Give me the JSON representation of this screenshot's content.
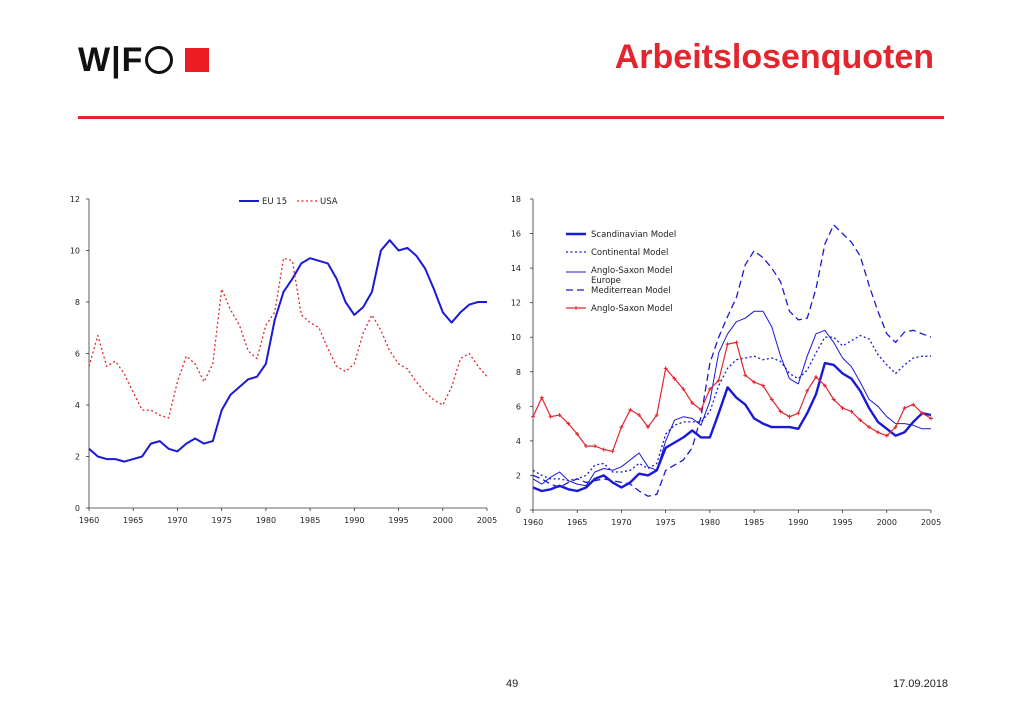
{
  "header": {
    "logo_text": "W|F",
    "title": "Arbeitslosenquoten"
  },
  "footer": {
    "page": "49",
    "date": "17.09.2018"
  },
  "colors": {
    "accent": "#e3262d",
    "blue": "#1a1ad6",
    "red": "#e3262d"
  },
  "chart_data": [
    {
      "type": "line",
      "title": "",
      "xlabel": "",
      "ylabel": "",
      "xlim": [
        1960,
        2005
      ],
      "ylim": [
        0,
        12
      ],
      "y_ticks": [
        "0",
        "2",
        "4",
        "6",
        "8",
        "10",
        "12"
      ],
      "x_ticks": [
        "1960",
        "1965",
        "1970",
        "1975",
        "1980",
        "1985",
        "1990",
        "1995",
        "2000",
        "2005"
      ],
      "legend_position": "top-center",
      "x": [
        1960,
        1961,
        1962,
        1963,
        1964,
        1965,
        1966,
        1967,
        1968,
        1969,
        1970,
        1971,
        1972,
        1973,
        1974,
        1975,
        1976,
        1977,
        1978,
        1979,
        1980,
        1981,
        1982,
        1983,
        1984,
        1985,
        1986,
        1987,
        1988,
        1989,
        1990,
        1991,
        1992,
        1993,
        1994,
        1995,
        1996,
        1997,
        1998,
        1999,
        2000,
        2001,
        2002,
        2003,
        2004,
        2005
      ],
      "series": [
        {
          "name": "EU 15",
          "color": "#1a1ad6",
          "dash": "solid",
          "values": [
            2.3,
            2.0,
            1.9,
            1.9,
            1.8,
            1.9,
            2.0,
            2.5,
            2.6,
            2.3,
            2.2,
            2.5,
            2.7,
            2.5,
            2.6,
            3.8,
            4.4,
            4.7,
            5.0,
            5.1,
            5.6,
            7.3,
            8.4,
            8.9,
            9.5,
            9.7,
            9.6,
            9.5,
            8.9,
            8.0,
            7.5,
            7.8,
            8.4,
            10.0,
            10.4,
            10.0,
            10.1,
            9.8,
            9.3,
            8.5,
            7.6,
            7.2,
            7.6,
            7.9,
            8.0,
            8.0
          ]
        },
        {
          "name": "USA",
          "color": "#e3262d",
          "dash": "dotted",
          "values": [
            5.5,
            6.7,
            5.5,
            5.7,
            5.2,
            4.5,
            3.8,
            3.8,
            3.6,
            3.5,
            4.9,
            5.9,
            5.6,
            4.9,
            5.6,
            8.5,
            7.7,
            7.1,
            6.1,
            5.8,
            7.1,
            7.6,
            9.7,
            9.6,
            7.5,
            7.2,
            7.0,
            6.2,
            5.5,
            5.3,
            5.6,
            6.8,
            7.5,
            6.9,
            6.1,
            5.6,
            5.4,
            4.9,
            4.5,
            4.2,
            4.0,
            4.7,
            5.8,
            6.0,
            5.5,
            5.1
          ]
        }
      ]
    },
    {
      "type": "line",
      "title": "",
      "xlabel": "",
      "ylabel": "",
      "xlim": [
        1960,
        2005
      ],
      "ylim": [
        0,
        18
      ],
      "y_ticks": [
        "0",
        "2",
        "4",
        "6",
        "8",
        "10",
        "12",
        "14",
        "16",
        "18"
      ],
      "x_ticks": [
        "1960",
        "1965",
        "1970",
        "1975",
        "1980",
        "1985",
        "1990",
        "1995",
        "2000",
        "2005"
      ],
      "legend_position": "top-left",
      "x": [
        1960,
        1961,
        1962,
        1963,
        1964,
        1965,
        1966,
        1967,
        1968,
        1969,
        1970,
        1971,
        1972,
        1973,
        1974,
        1975,
        1976,
        1977,
        1978,
        1979,
        1980,
        1981,
        1982,
        1983,
        1984,
        1985,
        1986,
        1987,
        1988,
        1989,
        1990,
        1991,
        1992,
        1993,
        1994,
        1995,
        1996,
        1997,
        1998,
        1999,
        2000,
        2001,
        2002,
        2003,
        2004,
        2005
      ],
      "series": [
        {
          "name": "Scandinavian Model",
          "color": "#1a1ad6",
          "dash": "thick",
          "values": [
            1.3,
            1.1,
            1.2,
            1.4,
            1.2,
            1.1,
            1.3,
            1.8,
            2.0,
            1.6,
            1.3,
            1.6,
            2.1,
            2.0,
            2.3,
            3.6,
            3.9,
            4.2,
            4.6,
            4.2,
            4.2,
            5.6,
            7.1,
            6.5,
            6.1,
            5.3,
            5.0,
            4.8,
            4.8,
            4.8,
            4.7,
            5.6,
            6.7,
            8.5,
            8.4,
            7.9,
            7.6,
            6.9,
            5.9,
            5.1,
            4.7,
            4.3,
            4.5,
            5.1,
            5.6,
            5.5
          ]
        },
        {
          "name": "Continental Model",
          "color": "#1a1ad6",
          "dash": "dotted",
          "values": [
            2.3,
            2.0,
            1.8,
            1.8,
            1.7,
            1.8,
            2.0,
            2.6,
            2.7,
            2.2,
            2.2,
            2.3,
            2.7,
            2.4,
            2.7,
            4.4,
            4.9,
            5.1,
            5.1,
            5.1,
            5.7,
            7.2,
            8.2,
            8.7,
            8.8,
            8.9,
            8.7,
            8.8,
            8.6,
            7.9,
            7.6,
            8.1,
            9.1,
            10.0,
            10.0,
            9.5,
            9.8,
            10.1,
            9.9,
            9.0,
            8.4,
            7.9,
            8.4,
            8.8,
            8.9,
            8.9
          ]
        },
        {
          "name": "Anglo-Saxon Model Europe",
          "color": "#1a1ad6",
          "dash": "thin",
          "values": [
            1.8,
            1.5,
            1.9,
            2.2,
            1.7,
            1.5,
            1.4,
            2.2,
            2.4,
            2.3,
            2.5,
            2.9,
            3.3,
            2.5,
            2.3,
            4.0,
            5.2,
            5.4,
            5.3,
            4.9,
            6.3,
            9.1,
            10.2,
            10.9,
            11.1,
            11.5,
            11.5,
            10.6,
            8.9,
            7.6,
            7.3,
            8.9,
            10.2,
            10.4,
            9.7,
            8.8,
            8.3,
            7.4,
            6.4,
            6.0,
            5.4,
            5.0,
            5.0,
            4.9,
            4.7,
            4.7
          ]
        },
        {
          "name": "Mediterrean Model",
          "color": "#1a1ad6",
          "dash": "dashed",
          "values": [
            2.0,
            1.8,
            1.5,
            1.3,
            1.6,
            1.8,
            1.6,
            1.7,
            1.8,
            1.7,
            1.6,
            1.5,
            1.1,
            0.8,
            0.9,
            2.3,
            2.6,
            2.9,
            3.6,
            5.4,
            8.5,
            10.0,
            11.2,
            12.3,
            14.2,
            15.0,
            14.6,
            14.0,
            13.2,
            11.5,
            11.0,
            11.1,
            12.8,
            15.4,
            16.5,
            16.0,
            15.5,
            14.7,
            13.0,
            11.5,
            10.2,
            9.7,
            10.3,
            10.4,
            10.2,
            10.0
          ]
        },
        {
          "name": "Anglo-Saxon Model",
          "color": "#e3262d",
          "dash": "markers",
          "values": [
            5.4,
            6.5,
            5.4,
            5.5,
            5.0,
            4.4,
            3.7,
            3.7,
            3.5,
            3.4,
            4.8,
            5.8,
            5.5,
            4.8,
            5.5,
            8.2,
            7.6,
            7.0,
            6.2,
            5.8,
            7.0,
            7.5,
            9.6,
            9.7,
            7.8,
            7.4,
            7.2,
            6.4,
            5.7,
            5.4,
            5.6,
            6.9,
            7.7,
            7.2,
            6.4,
            5.9,
            5.7,
            5.2,
            4.8,
            4.5,
            4.3,
            4.8,
            5.9,
            6.1,
            5.6,
            5.3
          ]
        }
      ]
    }
  ]
}
